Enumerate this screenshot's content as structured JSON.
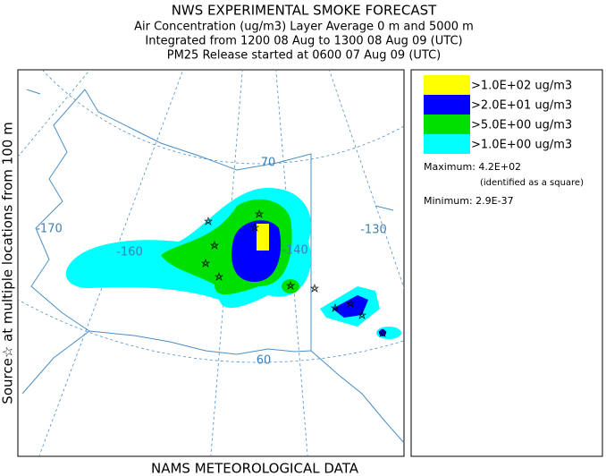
{
  "header": {
    "title": "NWS EXPERIMENTAL SMOKE FORECAST",
    "lines": [
      "Air Concentration (ug/m3) Layer Average    0 m and  5000 m",
      "Integrated from 1200 08 Aug to 1300 08 Aug 09 (UTC)",
      "PM25 Release started at 0600 07 Aug 09 (UTC)"
    ]
  },
  "side_label": "Source☆   at multiple locations   from   100 m",
  "map": {
    "labels": [
      "-170",
      "-160",
      "-140",
      "-130",
      "70",
      "60"
    ]
  },
  "legend": {
    "items": [
      {
        "label": ">1.0E+02 ug/m3",
        "color": "#ffff00"
      },
      {
        "label": ">2.0E+01 ug/m3",
        "color": "#0000ff"
      },
      {
        "label": ">5.0E+00 ug/m3",
        "color": "#00e000"
      },
      {
        "label": ">1.0E+00 ug/m3",
        "color": "#00ffff"
      }
    ],
    "maximum": "Maximum: 4.2E+02",
    "max_note": "(identified as a square)",
    "minimum": "Minimum: 2.9E-37"
  },
  "footer": "NAMS METEOROLOGICAL DATA"
}
